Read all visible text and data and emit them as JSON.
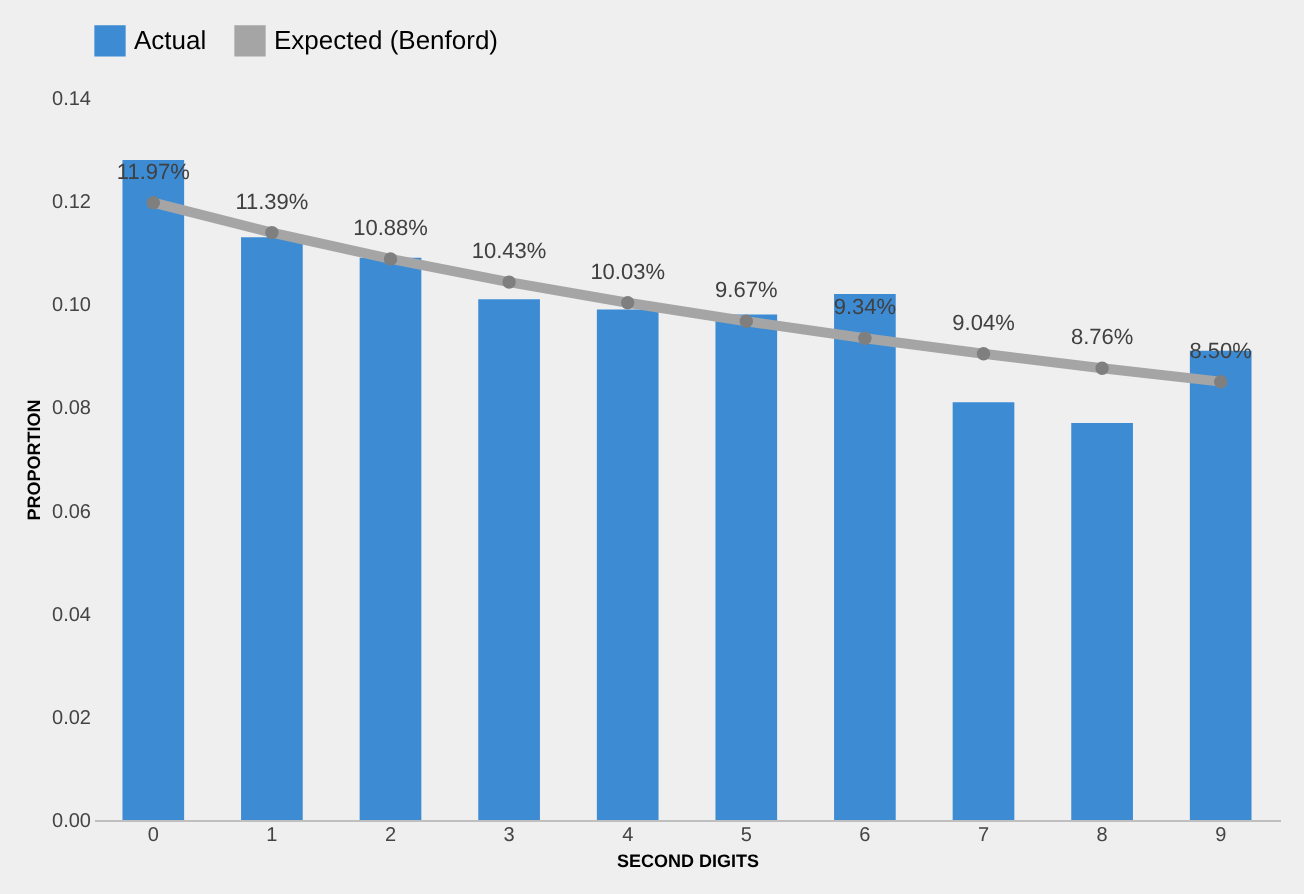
{
  "chart_data": {
    "type": "bar",
    "xlabel": "SECOND DIGITS",
    "ylabel": "PROPORTION",
    "categories": [
      "0",
      "1",
      "2",
      "3",
      "4",
      "5",
      "6",
      "7",
      "8",
      "9"
    ],
    "series": [
      {
        "name": "Actual",
        "color": "#3d8bd3",
        "values": [
          0.128,
          0.113,
          0.109,
          0.101,
          0.099,
          0.098,
          0.102,
          0.081,
          0.077,
          0.091
        ]
      },
      {
        "name": "Expected (Benford)",
        "type": "line",
        "color": "#a5a5a5",
        "marker": "circle",
        "values": [
          0.1197,
          0.1139,
          0.1088,
          0.1043,
          0.1003,
          0.0967,
          0.0934,
          0.0904,
          0.0876,
          0.085
        ],
        "value_labels": [
          "11.97%",
          "11.39%",
          "10.88%",
          "10.43%",
          "10.03%",
          "9.67%",
          "9.34%",
          "9.04%",
          "8.76%",
          "8.50%"
        ]
      }
    ],
    "ylim": [
      0,
      0.14
    ],
    "yticks": [
      {
        "value": 0,
        "label": "0.00"
      },
      {
        "value": 0.02,
        "label": "0.02"
      },
      {
        "value": 0.04,
        "label": "0.04"
      },
      {
        "value": 0.06,
        "label": "0.06"
      },
      {
        "value": 0.08,
        "label": "0.08"
      },
      {
        "value": 0.1,
        "label": "0.10"
      },
      {
        "value": 0.12,
        "label": "0.12"
      },
      {
        "value": 0.14,
        "label": "0.14"
      }
    ],
    "grid": false,
    "legend": "top"
  }
}
